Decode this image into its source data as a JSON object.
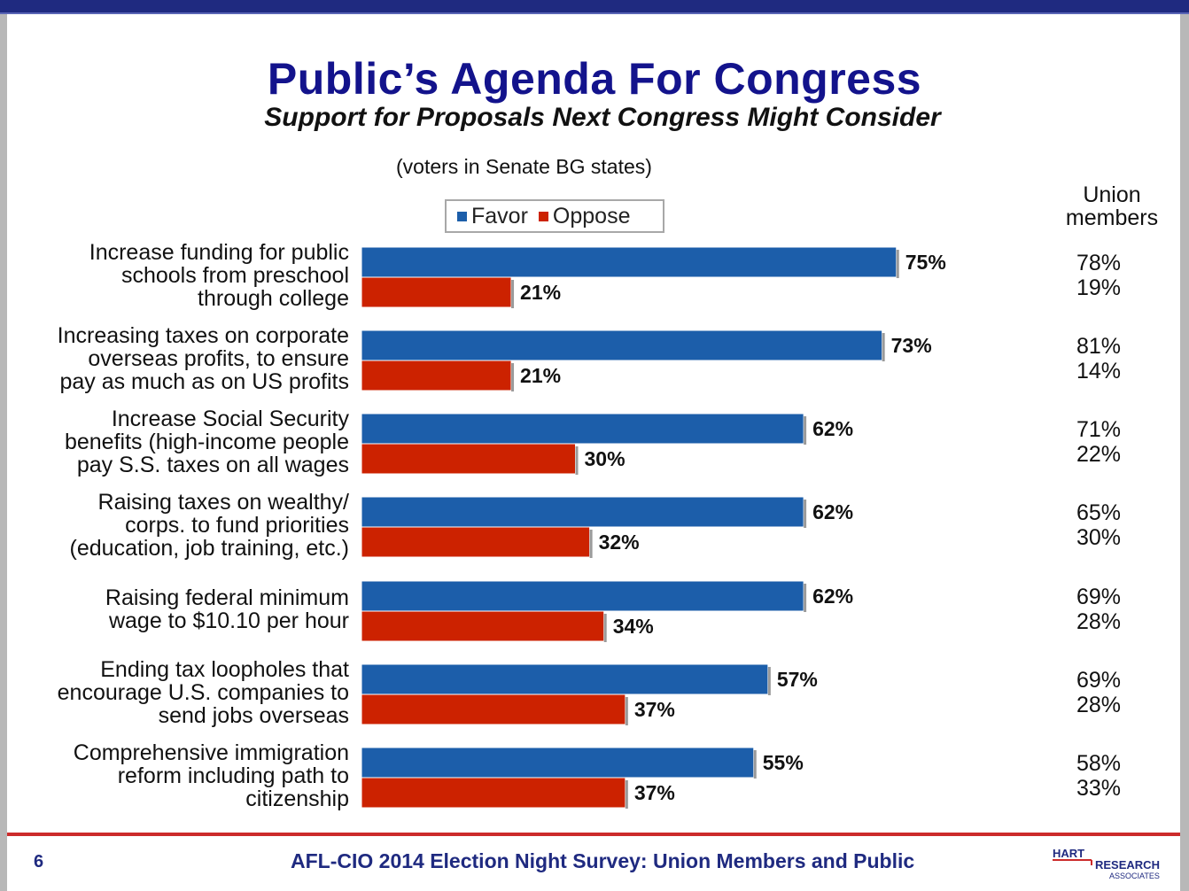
{
  "slide": {
    "title": "Public’s Agenda For Congress",
    "subtitle": "Support for Proposals Next Congress Might Consider",
    "note": "(voters in Senate BG states)",
    "union_header": [
      "Union",
      "members"
    ],
    "page_number": "6",
    "footer": "AFL-CIO 2014 Election Night Survey:  Union Members and Public",
    "logo_text": [
      "HART",
      "RESEARCH",
      "ASSOCIATES"
    ]
  },
  "colors": {
    "favor": "#1c5eaa",
    "oppose": "#cc2200",
    "title": "#13138c",
    "frame": "#1f2a80",
    "rule": "#cc2b2b"
  },
  "chart_data": {
    "type": "bar",
    "orientation": "horizontal",
    "legend_position": "top",
    "grid": false,
    "value_unit": "%",
    "categories": [
      [
        "Increase funding for public",
        "schools from preschool",
        "through college"
      ],
      [
        "Increasing taxes on corporate",
        "overseas profits, to ensure",
        "pay as much as on US profits"
      ],
      [
        "Increase Social Security",
        "benefits (high-income people",
        "pay S.S. taxes on all  wages"
      ],
      [
        "Raising taxes on wealthy/",
        "corps. to fund priorities",
        "(education, job training, etc.)"
      ],
      [
        "Raising federal minimum",
        "wage to $10.10 per hour"
      ],
      [
        "Ending tax loopholes that",
        "encourage U.S. companies to",
        "send jobs overseas"
      ],
      [
        "Comprehensive immigration",
        "reform including path to",
        "citizenship"
      ]
    ],
    "series": [
      {
        "name": "Favor",
        "values": [
          75,
          73,
          62,
          62,
          62,
          57,
          55
        ],
        "labels": [
          "75%",
          "73%",
          "62%",
          "62%",
          "62%",
          "57%",
          "55%"
        ]
      },
      {
        "name": "Oppose",
        "values": [
          21,
          21,
          30,
          32,
          34,
          37,
          37
        ],
        "labels": [
          "21%",
          "21%",
          "30%",
          "32%",
          "34%",
          "37%",
          "37%"
        ]
      }
    ],
    "union_members": [
      [
        "78%",
        "19%"
      ],
      [
        "81%",
        "14%"
      ],
      [
        "71%",
        "22%"
      ],
      [
        "65%",
        "30%"
      ],
      [
        "69%",
        "28%"
      ],
      [
        "69%",
        "28%"
      ],
      [
        "58%",
        "33%"
      ]
    ]
  }
}
